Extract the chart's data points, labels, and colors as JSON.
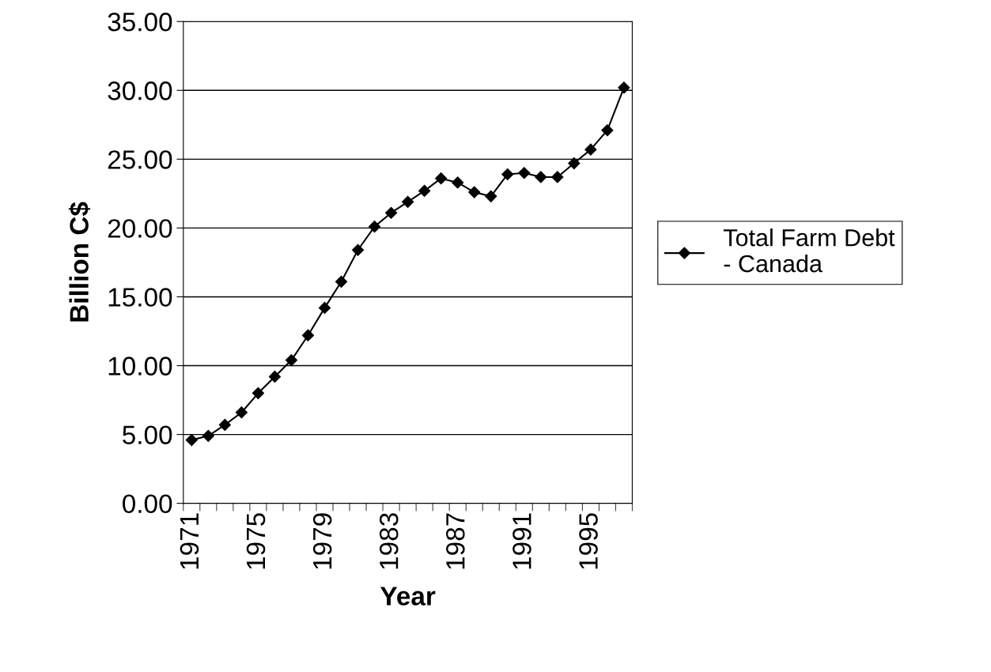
{
  "chart_data": {
    "type": "line",
    "xlabel": "Year",
    "ylabel": "Billion C$",
    "categories": [
      "1971",
      null,
      null,
      null,
      "1975",
      null,
      null,
      null,
      "1979",
      null,
      null,
      null,
      "1983",
      null,
      null,
      null,
      "1987",
      null,
      null,
      null,
      "1991",
      null,
      null,
      null,
      "1995",
      null,
      null
    ],
    "series": [
      {
        "name": "Total Farm Debt\n- Canada",
        "color": "#000000",
        "values": [
          4.6,
          4.9,
          5.7,
          6.6,
          8.0,
          9.2,
          10.4,
          12.2,
          14.2,
          16.1,
          18.4,
          20.1,
          21.1,
          21.9,
          22.7,
          23.6,
          23.3,
          22.6,
          22.3,
          23.9,
          24.0,
          23.7,
          23.7,
          24.7,
          25.7,
          27.1,
          30.2
        ]
      }
    ],
    "ylim": [
      0,
      35
    ],
    "yticks": [
      {
        "value": 0,
        "label": "0.00"
      },
      {
        "value": 5,
        "label": "5.00"
      },
      {
        "value": 10,
        "label": "10.00"
      },
      {
        "value": 15,
        "label": "15.00"
      },
      {
        "value": 20,
        "label": "20.00"
      },
      {
        "value": 25,
        "label": "25.00"
      },
      {
        "value": 30,
        "label": "30.00"
      },
      {
        "value": 35,
        "label": "35.00"
      }
    ],
    "grid": "y",
    "legend": "right",
    "marker": "diamond",
    "line_style": "solid"
  }
}
